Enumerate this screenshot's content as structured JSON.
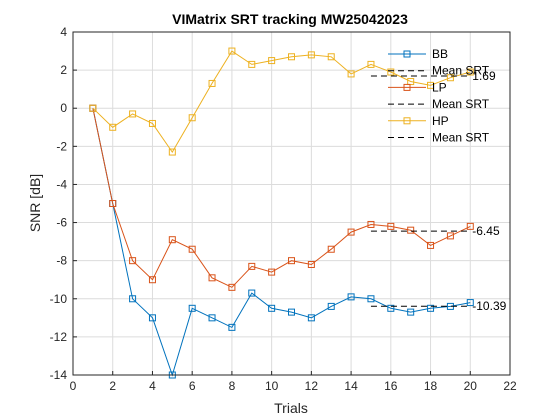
{
  "chart_data": {
    "type": "line",
    "title": "VIMatrix SRT tracking MW25042023",
    "xlabel": "Trials",
    "ylabel": "SNR [dB]",
    "xlim": [
      0,
      22
    ],
    "ylim": [
      -14,
      4
    ],
    "xticks": [
      0,
      2,
      4,
      6,
      8,
      10,
      12,
      14,
      16,
      18,
      20,
      22
    ],
    "yticks": [
      -14,
      -12,
      -10,
      -8,
      -6,
      -4,
      -2,
      0,
      2,
      4
    ],
    "grid": true,
    "legend_position": "top-right",
    "series": [
      {
        "name": "BB",
        "color": "#0072BD",
        "marker": "square",
        "x": [
          1,
          2,
          3,
          4,
          5,
          6,
          7,
          8,
          9,
          10,
          11,
          12,
          13,
          14,
          15,
          16,
          17,
          18,
          19,
          20
        ],
        "y": [
          0,
          -5,
          -10,
          -11,
          -14,
          -10.5,
          -11,
          -11.5,
          -9.7,
          -10.5,
          -10.7,
          -11,
          -10.4,
          -9.9,
          -10,
          -10.5,
          -10.7,
          -10.5,
          -10.4,
          -10.2
        ],
        "mean_srt": -10.39,
        "mean_label": "-10.39",
        "mean_range": [
          15,
          20
        ]
      },
      {
        "name": "LP",
        "color": "#D95319",
        "marker": "square",
        "x": [
          1,
          2,
          3,
          4,
          5,
          6,
          7,
          8,
          9,
          10,
          11,
          12,
          13,
          14,
          15,
          16,
          17,
          18,
          19,
          20
        ],
        "y": [
          0,
          -5,
          -8,
          -9,
          -6.9,
          -7.4,
          -8.9,
          -9.4,
          -8.3,
          -8.6,
          -8,
          -8.2,
          -7.4,
          -6.5,
          -6.1,
          -6.2,
          -6.4,
          -7.2,
          -6.7,
          -6.2
        ],
        "mean_srt": -6.45,
        "mean_label": "-6.45",
        "mean_range": [
          15,
          20
        ]
      },
      {
        "name": "HP",
        "color": "#EDB120",
        "marker": "square",
        "x": [
          1,
          2,
          3,
          4,
          5,
          6,
          7,
          8,
          9,
          10,
          11,
          12,
          13,
          14,
          15,
          16,
          17,
          18,
          19,
          20
        ],
        "y": [
          0,
          -1,
          -0.3,
          -0.8,
          -2.3,
          -0.5,
          1.3,
          3,
          2.3,
          2.5,
          2.7,
          2.8,
          2.7,
          1.8,
          2.3,
          1.9,
          1.4,
          1.2,
          1.6,
          1.9
        ],
        "mean_srt": 1.69,
        "mean_label": "1.69",
        "mean_range": [
          15,
          20
        ]
      }
    ],
    "legend": [
      {
        "label": "BB",
        "kind": "series",
        "series": 0
      },
      {
        "label": "Mean SRT",
        "kind": "mean"
      },
      {
        "label": "LP",
        "kind": "series",
        "series": 1
      },
      {
        "label": "Mean SRT",
        "kind": "mean"
      },
      {
        "label": "HP",
        "kind": "series",
        "series": 2
      },
      {
        "label": "Mean SRT",
        "kind": "mean"
      }
    ]
  }
}
